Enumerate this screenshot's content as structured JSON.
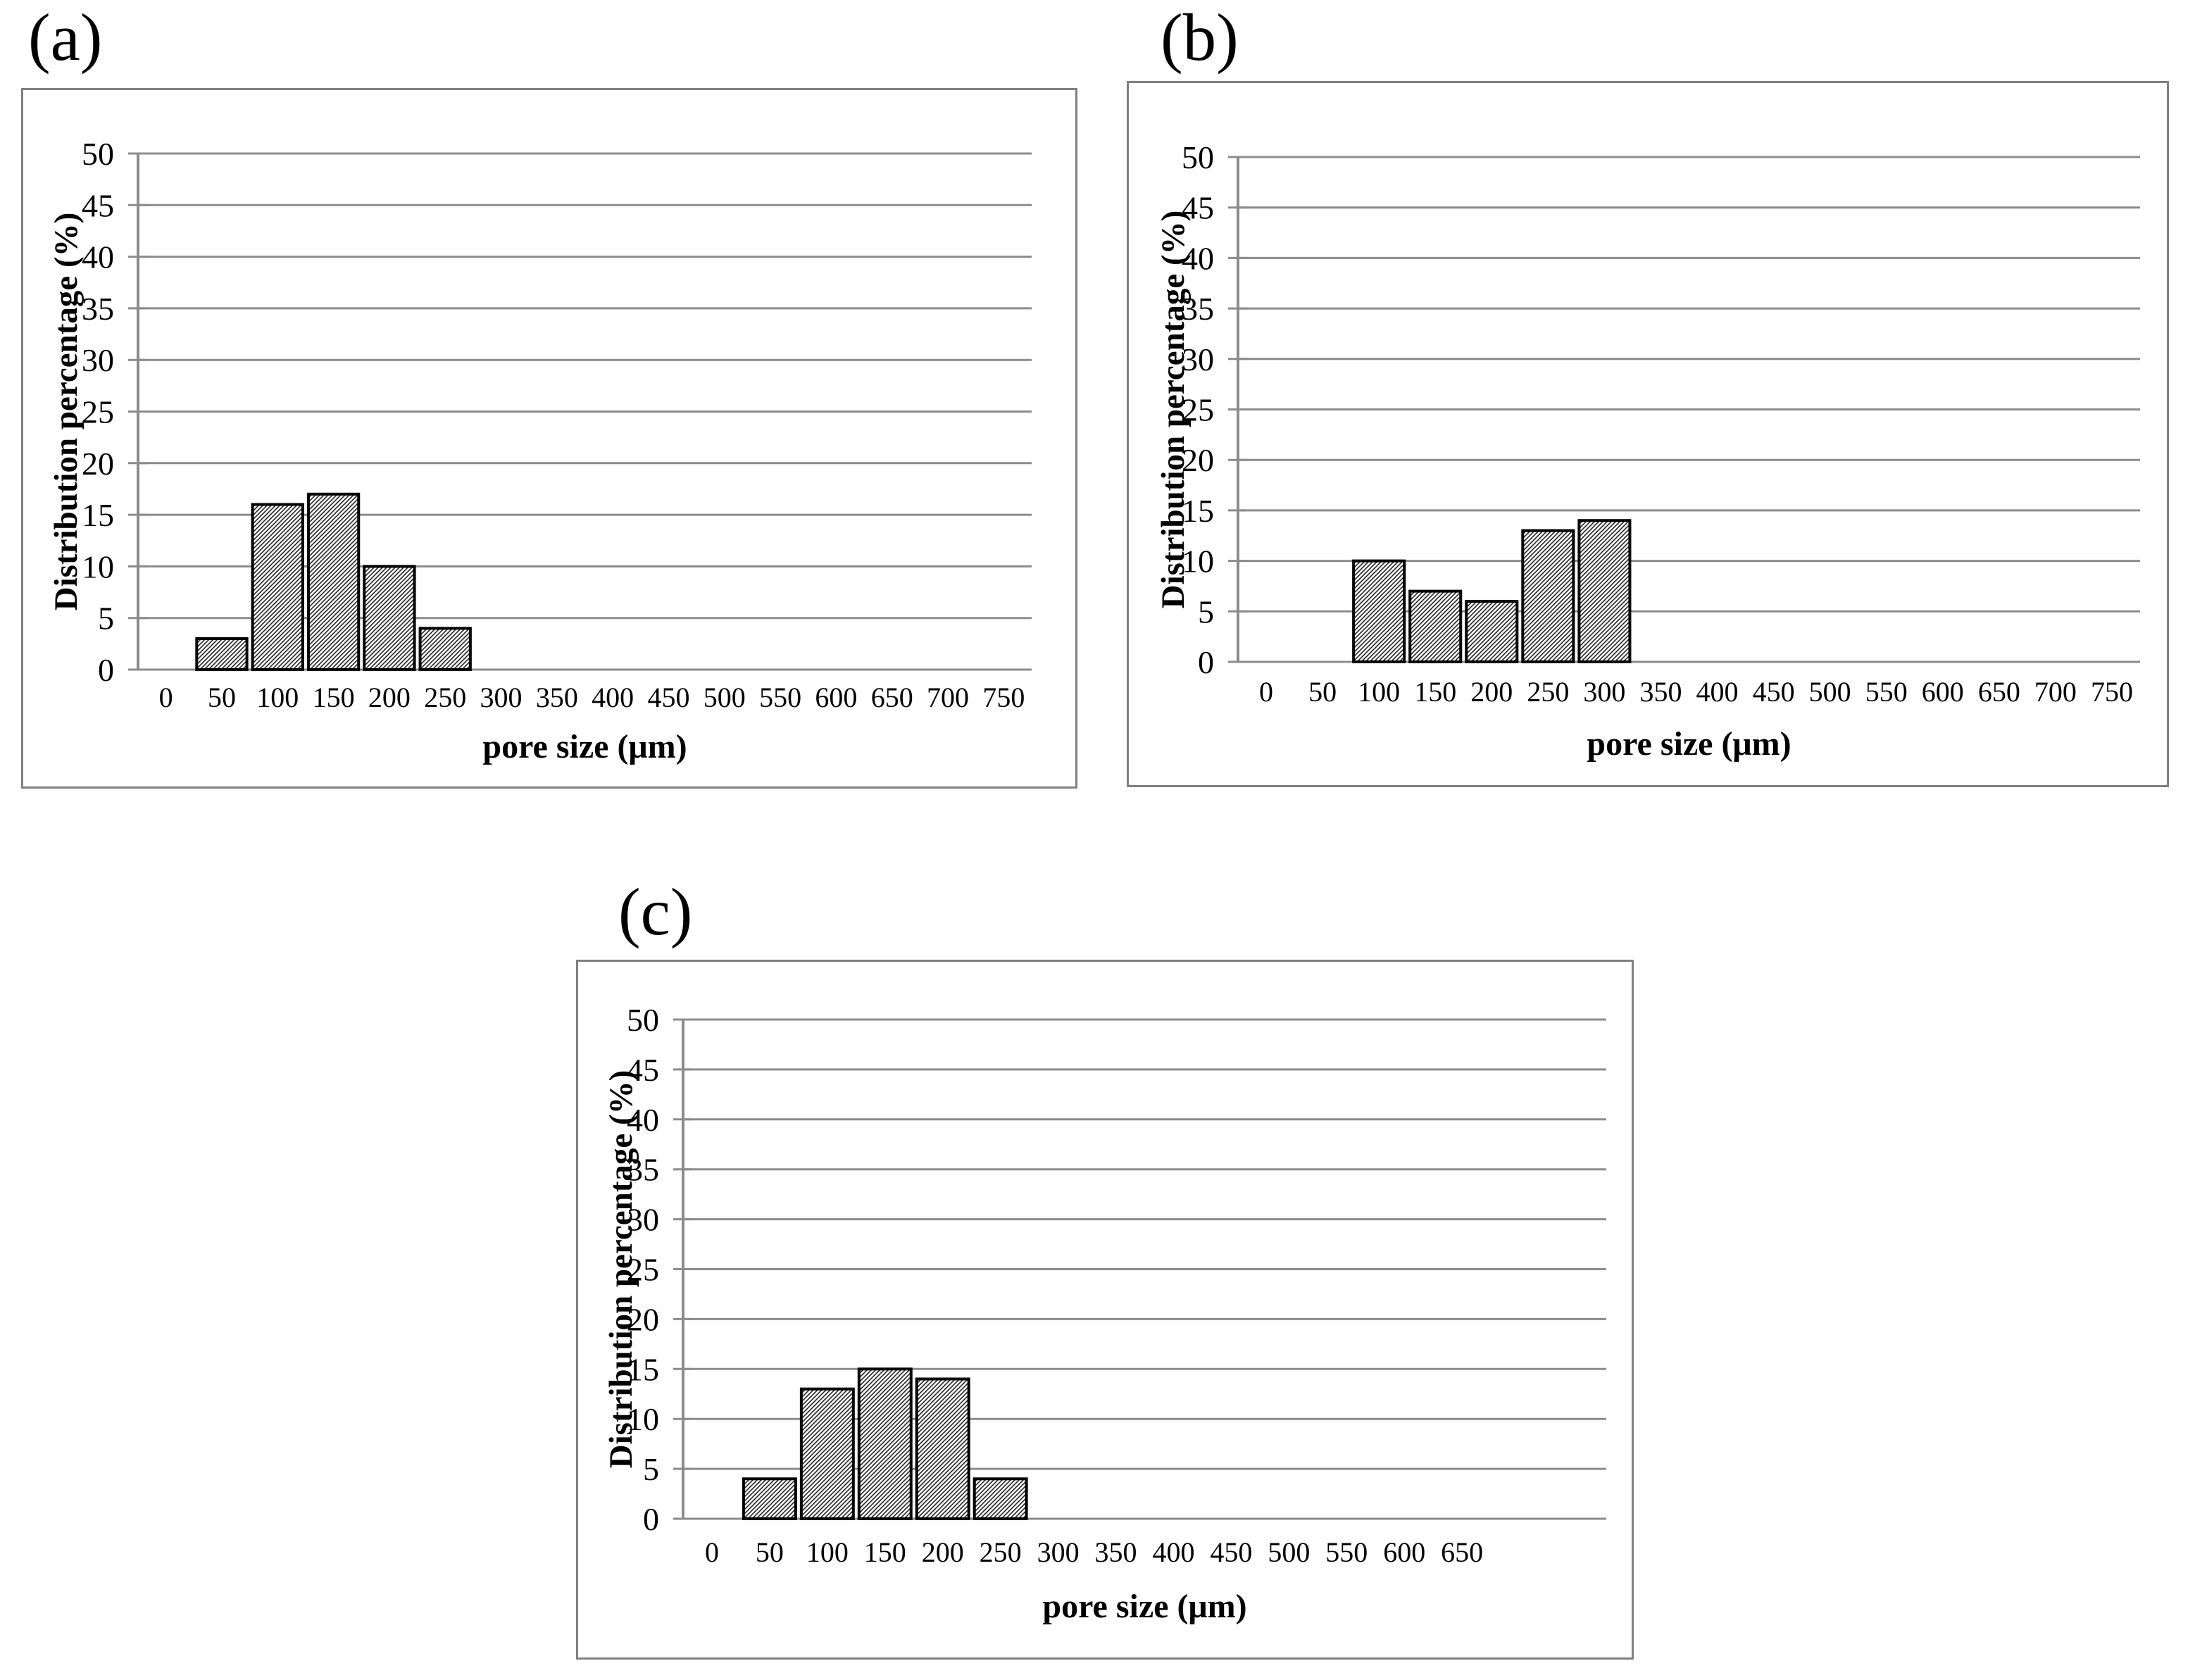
{
  "figure": {
    "description_visible_text_only": true,
    "panel_labels": [
      "(a)",
      "(b)",
      "(c)"
    ]
  },
  "colors": {
    "background": "#ffffff",
    "panel_border": "#808080",
    "gridline": "#8c8c8c",
    "axis_line": "#8c8c8c",
    "bar_outline": "#000000",
    "hatch_line": "#262626",
    "text": "#000000"
  },
  "chart_data": [
    {
      "type": "bar",
      "panel_label": "(a)",
      "title": "",
      "xlabel": "pore size (μm)",
      "ylabel": "Distribution percentage (%)",
      "x_tick_labels": [
        "0",
        "50",
        "100",
        "150",
        "200",
        "250",
        "300",
        "350",
        "400",
        "450",
        "500",
        "550",
        "600",
        "650",
        "700",
        "750"
      ],
      "y_tick_labels": [
        "0",
        "5",
        "10",
        "15",
        "20",
        "25",
        "30",
        "35",
        "40",
        "45",
        "50"
      ],
      "ylim": [
        0,
        50
      ],
      "y_tick_step": 5,
      "grid": true,
      "legend": "none",
      "bar_style": "diagonal-hatch",
      "categories": [
        50,
        100,
        150,
        200,
        250
      ],
      "values": [
        3,
        16,
        17,
        10,
        4
      ]
    },
    {
      "type": "bar",
      "panel_label": "(b)",
      "title": "",
      "xlabel": "pore size (μm)",
      "ylabel": "Distribution percentage (%)",
      "x_tick_labels": [
        "0",
        "50",
        "100",
        "150",
        "200",
        "250",
        "300",
        "350",
        "400",
        "450",
        "500",
        "550",
        "600",
        "650",
        "700",
        "750"
      ],
      "y_tick_labels": [
        "0",
        "5",
        "10",
        "15",
        "20",
        "25",
        "30",
        "35",
        "40",
        "45",
        "50"
      ],
      "ylim": [
        0,
        50
      ],
      "y_tick_step": 5,
      "grid": true,
      "legend": "none",
      "bar_style": "diagonal-hatch",
      "categories": [
        100,
        150,
        200,
        250,
        300
      ],
      "values": [
        10,
        7,
        6,
        13,
        14
      ]
    },
    {
      "type": "bar",
      "panel_label": "(c)",
      "title": "",
      "xlabel": "pore size (μm)",
      "ylabel": "Distribution percentage (%)",
      "x_tick_labels": [
        "0",
        "50",
        "100",
        "150",
        "200",
        "250",
        "300",
        "350",
        "400",
        "450",
        "500",
        "550",
        "600",
        "650"
      ],
      "y_tick_labels": [
        "0",
        "5",
        "10",
        "15",
        "20",
        "25",
        "30",
        "35",
        "40",
        "45",
        "50"
      ],
      "ylim": [
        0,
        50
      ],
      "y_tick_step": 5,
      "grid": true,
      "legend": "none",
      "bar_style": "diagonal-hatch",
      "categories": [
        50,
        100,
        150,
        200,
        250
      ],
      "values": [
        4,
        13,
        15,
        14,
        4
      ]
    }
  ]
}
